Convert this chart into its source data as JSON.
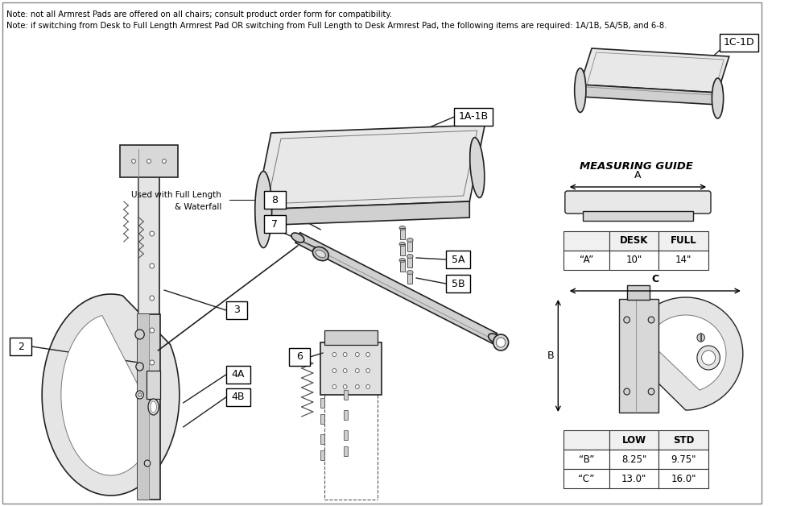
{
  "bg_color": "#ffffff",
  "note1": "Note: not all Armrest Pads are offered on all chairs; consult product order form for compatibility.",
  "note2": "Note: if switching from Desk to Full Length Armrest Pad OR switching from Full Length to Desk Armrest Pad, the following items are required: 1A/1B, 5A/5B, and 6-8.",
  "measuring_guide_title": "MEASURING GUIDE",
  "table1_headers": [
    "",
    "DESK",
    "FULL"
  ],
  "table1_rows": [
    [
      "“A”",
      "10\"",
      "14\""
    ]
  ],
  "table2_headers": [
    "",
    "LOW",
    "STD"
  ],
  "table2_rows": [
    [
      "“B”",
      "8.25\"",
      "9.75\""
    ],
    [
      "“C”",
      "13.0\"",
      "16.0\""
    ]
  ],
  "font_size_notes": 7.2,
  "font_size_labels": 9,
  "font_size_table": 8.5,
  "font_size_measuring_title": 9.5
}
